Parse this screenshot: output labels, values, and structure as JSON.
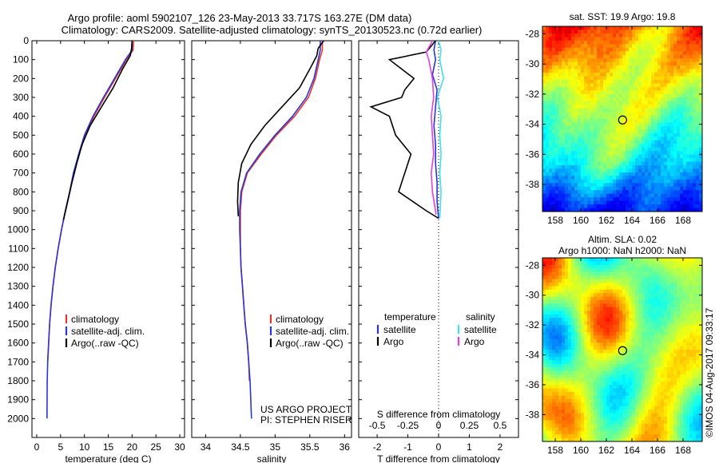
{
  "header": {
    "line1": "Argo profile: aoml 5902107_126 23-May-2013 33.717S 163.27E (DM data)",
    "line2": "Climatology: CARS2009. Satellite-adjusted climatology: synTS_20130523.nc (0.72d earlier)"
  },
  "credit": "©IMOS 04-Aug-2017 09:33:17",
  "project_note": [
    "US ARGO PROJECT",
    "PI: STEPHEN RISER"
  ],
  "colors": {
    "climatology": "#e8332a",
    "satellite": "#2a35d8",
    "argo": "#000000",
    "argo_salinity": "#e040e0",
    "satellite_salinity": "#3ee0f0"
  },
  "chart_data": [
    {
      "id": "temperature",
      "type": "line",
      "xlabel": "temperature (deg C)",
      "ylabel": "",
      "xlim": [
        -1,
        31
      ],
      "ylim": [
        2100,
        0
      ],
      "xticks": [
        0,
        5,
        10,
        15,
        20,
        25,
        30
      ],
      "yticks": [
        0,
        100,
        200,
        300,
        400,
        500,
        600,
        700,
        800,
        900,
        1000,
        1100,
        1200,
        1300,
        1400,
        1500,
        1600,
        1700,
        1800,
        1900,
        2000
      ],
      "legend": [
        "climatology",
        "satellite-adj. clim.",
        "Argo(..raw -QC)"
      ],
      "series": [
        {
          "name": "climatology",
          "color_key": "climatology",
          "x": [
            20.3,
            20.2,
            18.8,
            16.5,
            14.2,
            12.0,
            10.2,
            8.9,
            7.8,
            6.9,
            6.0,
            5.2,
            4.5,
            3.9,
            3.4,
            3.0,
            2.7,
            2.5,
            2.3
          ],
          "y": [
            0,
            50,
            100,
            200,
            300,
            400,
            500,
            600,
            700,
            800,
            900,
            1000,
            1100,
            1200,
            1300,
            1400,
            1500,
            1600,
            1700
          ]
        },
        {
          "name": "satellite-adj. clim.",
          "color_key": "satellite",
          "x": [
            20.0,
            20.0,
            18.6,
            16.3,
            14.0,
            11.8,
            10.0,
            8.8,
            7.7,
            6.9,
            6.0,
            5.2,
            4.5,
            3.9,
            3.4,
            3.0,
            2.7,
            2.5,
            2.3,
            2.2,
            2.15
          ],
          "y": [
            0,
            50,
            100,
            200,
            300,
            400,
            500,
            600,
            700,
            800,
            900,
            1000,
            1100,
            1200,
            1300,
            1400,
            1500,
            1600,
            1700,
            1800,
            2000
          ]
        },
        {
          "name": "Argo(..raw -QC)",
          "color_key": "argo",
          "x": [
            20.0,
            19.9,
            19.6,
            18.0,
            16.0,
            13.6,
            11.2,
            9.5,
            8.4,
            7.4,
            6.5,
            5.6
          ],
          "y": [
            0,
            40,
            80,
            150,
            250,
            350,
            450,
            550,
            650,
            750,
            850,
            950
          ]
        }
      ]
    },
    {
      "id": "salinity",
      "type": "line",
      "xlabel": "salinity",
      "ylabel": "",
      "xlim": [
        33.8,
        36.1
      ],
      "ylim": [
        2100,
        0
      ],
      "xticks": [
        34,
        34.5,
        35,
        35.5,
        36
      ],
      "legend": [
        "climatology",
        "satellite-adj. clim.",
        "Argo(..raw -QC)"
      ],
      "series": [
        {
          "name": "climatology",
          "color_key": "climatology",
          "x": [
            35.68,
            35.68,
            35.64,
            35.58,
            35.48,
            35.28,
            35.02,
            34.8,
            34.6,
            34.52,
            34.5,
            34.5,
            34.5,
            34.51,
            34.53,
            34.55,
            34.57,
            34.6,
            34.62,
            34.63
          ],
          "y": [
            0,
            50,
            100,
            200,
            300,
            400,
            500,
            600,
            700,
            800,
            900,
            1000,
            1100,
            1200,
            1300,
            1400,
            1500,
            1600,
            1700,
            1800
          ]
        },
        {
          "name": "satellite-adj. clim.",
          "color_key": "satellite",
          "x": [
            35.65,
            35.65,
            35.62,
            35.56,
            35.45,
            35.25,
            35.0,
            34.78,
            34.59,
            34.51,
            34.49,
            34.49,
            34.5,
            34.51,
            34.53,
            34.55,
            34.57,
            34.6,
            34.62,
            34.64,
            34.66
          ],
          "y": [
            0,
            50,
            100,
            200,
            300,
            400,
            500,
            600,
            700,
            800,
            900,
            1000,
            1100,
            1200,
            1300,
            1400,
            1500,
            1600,
            1700,
            1800,
            2000
          ]
        },
        {
          "name": "Argo(..raw -QC)",
          "color_key": "argo",
          "x": [
            35.7,
            35.62,
            35.6,
            35.5,
            35.35,
            35.1,
            34.85,
            34.65,
            34.52,
            34.47,
            34.46,
            34.47
          ],
          "y": [
            0,
            40,
            80,
            150,
            250,
            350,
            450,
            550,
            650,
            750,
            850,
            930
          ]
        }
      ]
    },
    {
      "id": "difference",
      "type": "line",
      "xlabel": "T difference from climatology",
      "xlabel_top": "S difference from climatology",
      "xlim": [
        -2.6,
        2.6
      ],
      "ylim": [
        2100,
        0
      ],
      "xticks_bottom": [
        -2,
        -1,
        0,
        1,
        2
      ],
      "xticks_top": [
        -0.5,
        -0.25,
        0,
        0.25,
        0.5
      ],
      "xticks_top_labels": [
        "-0.5",
        "-0.25",
        "0",
        "0.25",
        "0.5"
      ],
      "legend_groups": [
        {
          "title": "temperature",
          "items": [
            "satellite",
            "Argo"
          ]
        },
        {
          "title": "salinity",
          "items": [
            "satellite",
            "Argo"
          ]
        }
      ],
      "series": [
        {
          "name": "temperature satellite",
          "color_key": "satellite",
          "x": [
            -0.1,
            -0.15,
            -0.1,
            -0.2,
            -0.05,
            -0.1,
            -0.15,
            -0.1,
            -0.1,
            -0.05,
            -0.05,
            0
          ],
          "y": [
            0,
            50,
            100,
            180,
            260,
            350,
            450,
            550,
            650,
            750,
            850,
            940
          ]
        },
        {
          "name": "temperature Argo",
          "color_key": "argo",
          "x": [
            -0.1,
            -0.4,
            -1.6,
            -0.8,
            -1.1,
            -1.2,
            -2.2,
            -1.6,
            -1.4,
            -0.9,
            -1.3,
            -0.4,
            0
          ],
          "y": [
            0,
            60,
            100,
            200,
            260,
            300,
            350,
            400,
            500,
            600,
            800,
            900,
            940
          ]
        },
        {
          "name": "salinity satellite",
          "color_key": "satellite_salinity",
          "x": [
            0,
            0.02,
            0.01,
            0.04,
            -0.01,
            0.02,
            0.01,
            0.02,
            0.01,
            0.02,
            0.01
          ],
          "y": [
            0,
            50,
            100,
            200,
            300,
            400,
            500,
            600,
            700,
            800,
            940
          ]
        },
        {
          "name": "salinity Argo",
          "color_key": "argo_salinity",
          "x": [
            -0.05,
            -0.1,
            -0.08,
            -0.05,
            -0.04,
            -0.06,
            -0.05,
            -0.04,
            -0.06,
            -0.05,
            -0.02
          ],
          "y": [
            0,
            60,
            100,
            200,
            300,
            400,
            500,
            600,
            700,
            800,
            920
          ]
        }
      ]
    },
    {
      "id": "sst_map",
      "type": "heatmap",
      "title": "sat. SST: 19.9 Argo: 19.8",
      "xlim": [
        157,
        169.5
      ],
      "ylim": [
        -39.8,
        -27.5
      ],
      "xticks": [
        158,
        160,
        162,
        164,
        166,
        168
      ],
      "yticks": [
        -28,
        -30,
        -32,
        -34,
        -36,
        -38
      ],
      "marker": {
        "lon": 163.27,
        "lat": -33.717
      }
    },
    {
      "id": "sla_map",
      "type": "heatmap",
      "title": "Altim. SLA: 0.02",
      "subtitle": "Argo h1000: NaN h2000: NaN",
      "xlim": [
        157,
        169.5
      ],
      "ylim": [
        -39.8,
        -27.5
      ],
      "xticks": [
        158,
        160,
        162,
        164,
        166,
        168
      ],
      "yticks": [
        -28,
        -30,
        -32,
        -34,
        -36,
        -38
      ],
      "marker": {
        "lon": 163.27,
        "lat": -33.717
      }
    }
  ]
}
